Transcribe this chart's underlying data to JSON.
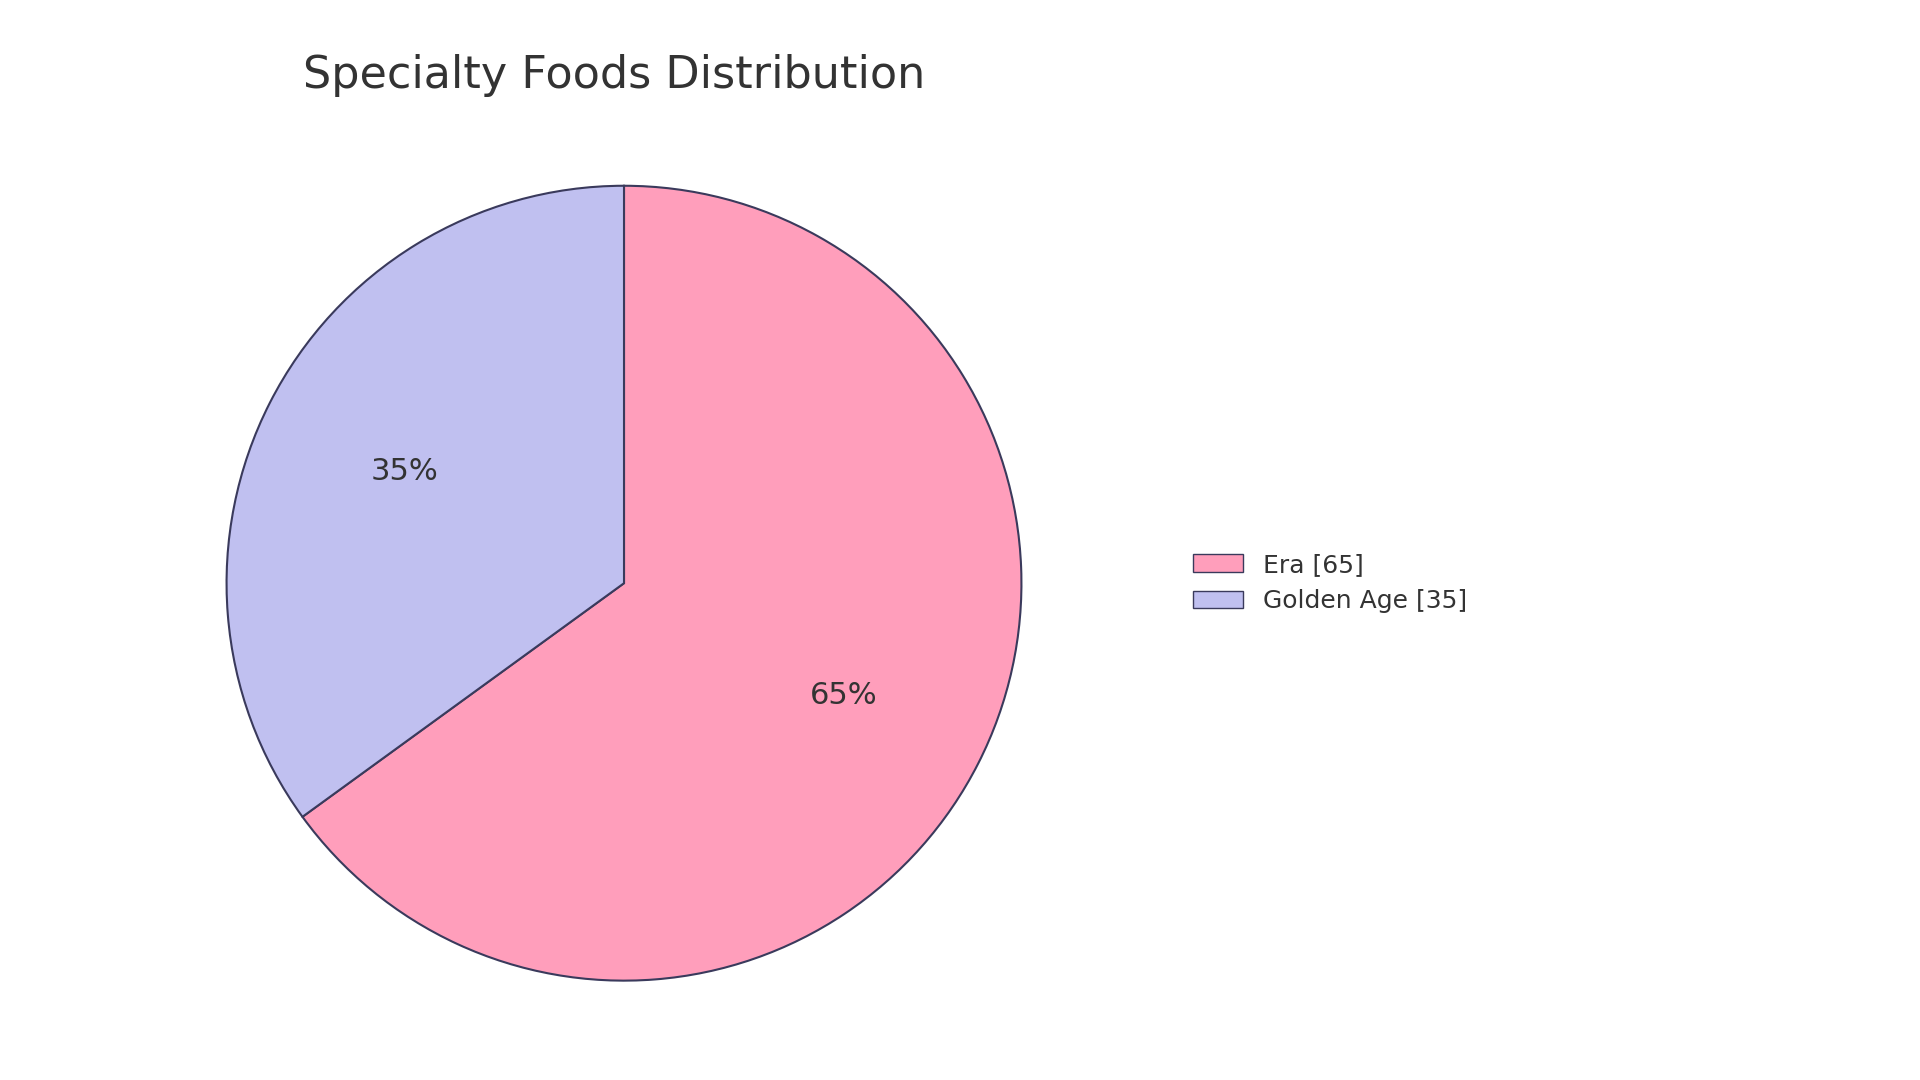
{
  "title": "Specialty Foods Distribution",
  "slices": [
    65,
    35
  ],
  "labels": [
    "Era [65]",
    "Golden Age [35]"
  ],
  "colors": [
    "#FF9EBB",
    "#C0C0F0"
  ],
  "edge_color": "#3A3A5C",
  "edge_width": 1.5,
  "pct_labels": [
    "65%",
    "35%"
  ],
  "startangle": 90,
  "title_fontsize": 32,
  "pct_fontsize": 22,
  "legend_fontsize": 18,
  "background_color": "#FFFFFF",
  "text_color": "#333333"
}
